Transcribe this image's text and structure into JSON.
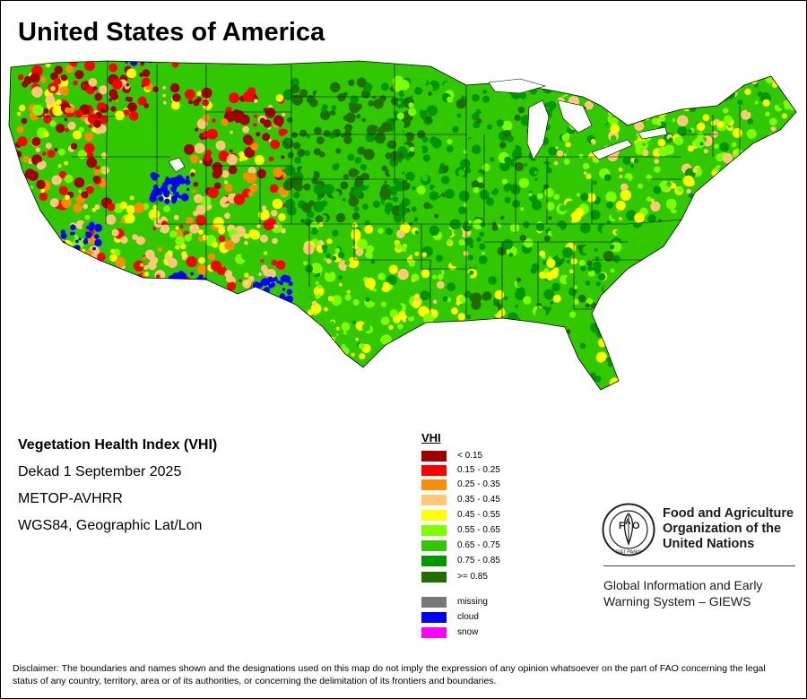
{
  "title": "United States of America",
  "info": {
    "index_name": "Vegetation Health Index (VHI)",
    "period": "Dekad 1 September 2025",
    "sensor": "METOP-AVHRR",
    "projection": "WGS84, Geographic Lat/Lon"
  },
  "legend": {
    "title": "VHI",
    "classes": [
      {
        "label": "< 0.15",
        "color": "#a00000"
      },
      {
        "label": "0.15 - 0.25",
        "color": "#ff0000"
      },
      {
        "label": "0.25 - 0.35",
        "color": "#ff8c00"
      },
      {
        "label": "0.35 - 0.45",
        "color": "#ffc878"
      },
      {
        "label": "0.45 - 0.55",
        "color": "#ffff00"
      },
      {
        "label": "0.55 - 0.65",
        "color": "#7cff00"
      },
      {
        "label": "0.65 - 0.75",
        "color": "#32c800"
      },
      {
        "label": "0.75 - 0.85",
        "color": "#009600"
      },
      {
        "label": ">= 0.85",
        "color": "#1e6e00"
      }
    ],
    "special": [
      {
        "label": "missing",
        "color": "#787878"
      },
      {
        "label": "cloud",
        "color": "#0000ff"
      },
      {
        "label": "snow",
        "color": "#ff00ff"
      }
    ]
  },
  "organization": {
    "emblem_text": "FIAT PANIS",
    "name_line1": "Food and Agriculture",
    "name_line2": "Organization of the",
    "name_line3": "United Nations",
    "system_line1": "Global Information and Early",
    "system_line2": "Warning System – GIEWS"
  },
  "disclaimer": "Disclaimer: The boundaries and names shown and the designations used on this map do not imply the expression of any opinion whatsoever on the part of FAO concerning the legal status of any country, territory, area or of its authorities, or concerning the delimitation of its frontiers and boundaries."
}
